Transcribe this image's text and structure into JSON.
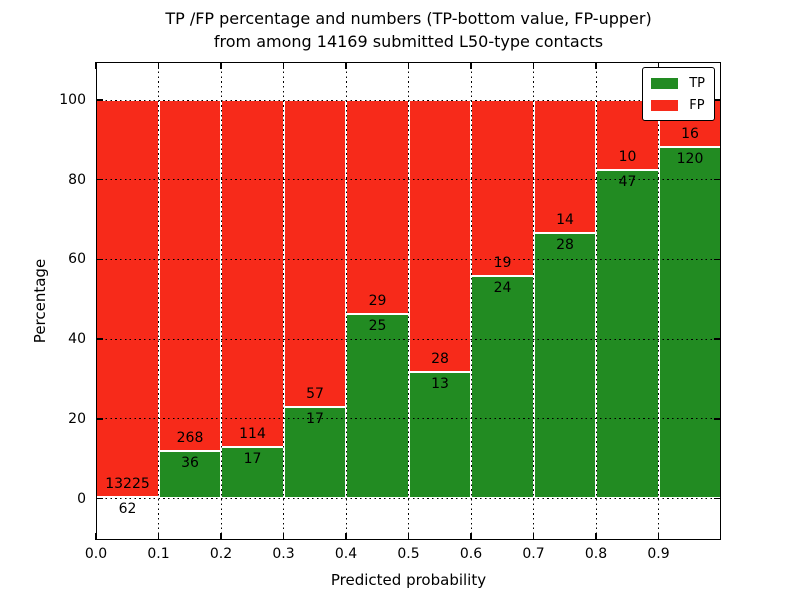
{
  "title": {
    "line1": "TP /FP percentage and numbers (TP-bottom value, FP-upper)",
    "line2": "from among 14169 submitted L50-type contacts"
  },
  "axes": {
    "xlabel": "Predicted probability",
    "ylabel": "Percentage",
    "xtick_labels": [
      "0.0",
      "0.1",
      "0.2",
      "0.3",
      "0.4",
      "0.5",
      "0.6",
      "0.7",
      "0.8",
      "0.9"
    ],
    "ytick_labels": [
      "0",
      "20",
      "40",
      "60",
      "80",
      "100"
    ]
  },
  "legend": {
    "items": [
      {
        "label": "TP",
        "color": "#228b22"
      },
      {
        "label": "FP",
        "color": "#f72a1a"
      }
    ]
  },
  "chart_data": {
    "type": "bar",
    "stacked": true,
    "normalized_to_percent": true,
    "title": "TP /FP percentage and numbers (TP-bottom value, FP-upper) from among 14169 submitted L50-type contacts",
    "xlabel": "Predicted probability",
    "ylabel": "Percentage",
    "categories": [
      "0.0-0.1",
      "0.1-0.2",
      "0.2-0.3",
      "0.3-0.4",
      "0.4-0.5",
      "0.5-0.6",
      "0.6-0.7",
      "0.7-0.8",
      "0.8-0.9",
      "0.9-1.0"
    ],
    "xticks": [
      0.0,
      0.1,
      0.2,
      0.3,
      0.4,
      0.5,
      0.6,
      0.7,
      0.8,
      0.9
    ],
    "yticks": [
      0,
      20,
      40,
      60,
      80,
      100
    ],
    "ylim": [
      0,
      100
    ],
    "series": [
      {
        "name": "TP",
        "color": "#228b22",
        "counts": [
          62,
          36,
          17,
          17,
          25,
          13,
          24,
          28,
          47,
          120
        ],
        "percent": [
          0.47,
          11.84,
          12.98,
          22.97,
          46.3,
          31.71,
          55.81,
          66.67,
          82.46,
          88.24
        ]
      },
      {
        "name": "FP",
        "color": "#f72a1a",
        "counts": [
          13225,
          268,
          114,
          57,
          29,
          28,
          19,
          14,
          10,
          16
        ],
        "percent": [
          99.53,
          88.16,
          87.02,
          77.03,
          53.7,
          68.29,
          44.19,
          33.33,
          17.54,
          11.76
        ]
      }
    ],
    "total_contacts": 14169,
    "grid": "dotted black, vertical at each 0.1 and horizontal at each 20%",
    "legend_position": "upper right",
    "bar_label_note": "FP count printed just above TP/FP boundary, TP count just below it"
  }
}
